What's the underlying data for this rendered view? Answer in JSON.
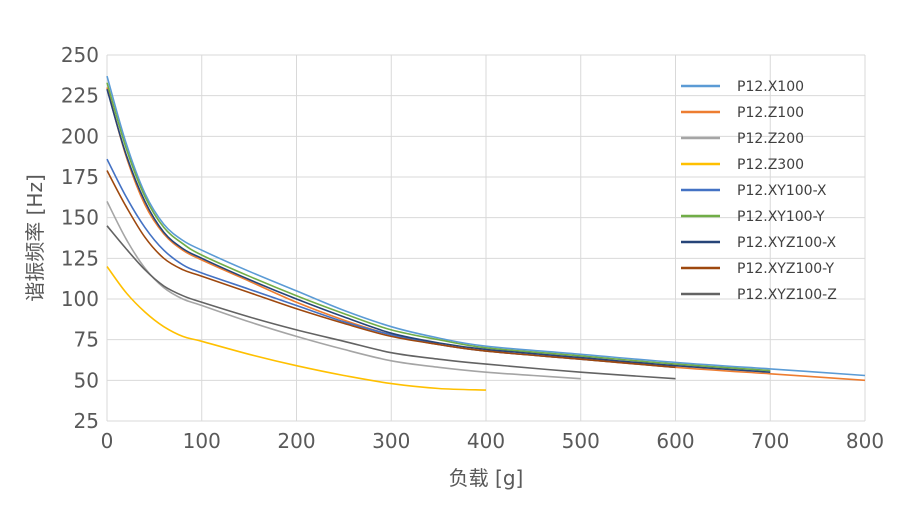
{
  "chart_data": {
    "type": "line",
    "xlabel": "负载 [g]",
    "ylabel": "谐振频率 [Hz]",
    "xlim": [
      0,
      800
    ],
    "ylim": [
      25,
      250
    ],
    "xticks": [
      0,
      100,
      200,
      300,
      400,
      500,
      600,
      700,
      800
    ],
    "yticks": [
      25,
      50,
      75,
      100,
      125,
      150,
      175,
      200,
      225,
      250
    ],
    "grid": true,
    "legend_position": "right",
    "series": [
      {
        "name": "P12.X100",
        "color": "#5b9bd5",
        "x": [
          0,
          20,
          40,
          60,
          80,
          100,
          150,
          200,
          250,
          300,
          350,
          400,
          500,
          600,
          700,
          800
        ],
        "y": [
          237,
          196,
          165,
          146,
          136,
          130,
          117,
          105,
          93,
          83,
          76,
          71,
          66,
          61,
          57,
          53
        ]
      },
      {
        "name": "P12.Z100",
        "color": "#ed7d31",
        "x": [
          0,
          20,
          40,
          60,
          80,
          100,
          150,
          200,
          250,
          300,
          350,
          400,
          500,
          600,
          700,
          800
        ],
        "y": [
          230,
          188,
          158,
          140,
          130,
          124,
          111,
          98,
          87,
          78,
          72,
          68,
          63,
          58,
          54,
          50
        ]
      },
      {
        "name": "P12.Z200",
        "color": "#a5a5a5",
        "x": [
          0,
          20,
          40,
          60,
          80,
          100,
          150,
          200,
          250,
          300,
          350,
          400,
          450,
          500
        ],
        "y": [
          160,
          137,
          119,
          107,
          100,
          96,
          86,
          77,
          69,
          62,
          58,
          55,
          53,
          51
        ]
      },
      {
        "name": "P12.Z300",
        "color": "#ffc000",
        "x": [
          0,
          20,
          40,
          60,
          80,
          100,
          150,
          200,
          250,
          300,
          350,
          400
        ],
        "y": [
          120,
          104,
          92,
          83,
          77,
          74,
          66,
          59,
          53,
          48,
          45,
          44
        ]
      },
      {
        "name": "P12.XY100-X",
        "color": "#4472c4",
        "x": [
          0,
          20,
          40,
          60,
          80,
          100,
          150,
          200,
          250,
          300,
          350,
          400,
          500,
          600
        ],
        "y": [
          186,
          163,
          144,
          130,
          121,
          116,
          106,
          96,
          86,
          78,
          72,
          68,
          63,
          58
        ]
      },
      {
        "name": "P12.XY100-Y",
        "color": "#70ad47",
        "x": [
          0,
          20,
          40,
          60,
          80,
          100,
          150,
          200,
          250,
          300,
          350,
          400,
          500,
          600,
          700
        ],
        "y": [
          233,
          193,
          163,
          144,
          134,
          127,
          114,
          102,
          91,
          81,
          75,
          70,
          65,
          60,
          56
        ]
      },
      {
        "name": "P12.XYZ100-X",
        "color": "#264478",
        "x": [
          0,
          20,
          40,
          60,
          80,
          100,
          150,
          200,
          250,
          300,
          350,
          400,
          500,
          600,
          700
        ],
        "y": [
          229,
          189,
          160,
          141,
          131,
          125,
          112,
          100,
          89,
          79,
          73,
          69,
          64,
          59,
          55
        ]
      },
      {
        "name": "P12.XYZ100-Y",
        "color": "#9e480e",
        "x": [
          0,
          20,
          40,
          60,
          80,
          100,
          150,
          200,
          250,
          300,
          350,
          400,
          500,
          600
        ],
        "y": [
          179,
          157,
          138,
          125,
          118,
          114,
          104,
          94,
          85,
          77,
          72,
          68,
          63,
          58
        ]
      },
      {
        "name": "P12.XYZ100-Z",
        "color": "#636363",
        "x": [
          0,
          20,
          40,
          60,
          80,
          100,
          150,
          200,
          250,
          300,
          350,
          400,
          500,
          600
        ],
        "y": [
          145,
          131,
          118,
          108,
          102,
          98,
          89,
          81,
          74,
          67,
          63,
          60,
          55,
          51
        ]
      }
    ]
  }
}
